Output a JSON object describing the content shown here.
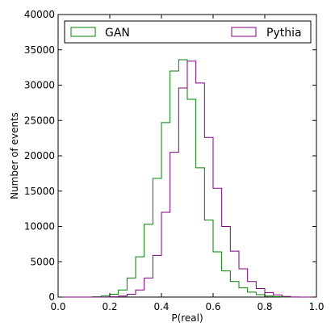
{
  "chart_data": {
    "type": "histogram",
    "title": "",
    "xlabel": "P(real)",
    "ylabel": "Number of events",
    "xlim": [
      0.0,
      1.0
    ],
    "ylim": [
      0,
      40000
    ],
    "xticks": [
      0.0,
      0.2,
      0.4,
      0.6,
      0.8,
      1.0
    ],
    "xtick_labels": [
      "0.0",
      "0.2",
      "0.4",
      "0.6",
      "0.8",
      "1.0"
    ],
    "yticks": [
      0,
      5000,
      10000,
      15000,
      20000,
      25000,
      30000,
      35000,
      40000
    ],
    "ytick_labels": [
      "0",
      "5000",
      "10000",
      "15000",
      "20000",
      "25000",
      "30000",
      "35000",
      "40000"
    ],
    "grid": false,
    "legend_placement": "top, two columns",
    "bin_edges": [
      0.0,
      0.0333,
      0.0667,
      0.1,
      0.1333,
      0.1667,
      0.2,
      0.2333,
      0.2667,
      0.3,
      0.3333,
      0.3667,
      0.4,
      0.4333,
      0.4667,
      0.5,
      0.5333,
      0.5667,
      0.6,
      0.6333,
      0.6667,
      0.7,
      0.7333,
      0.7667,
      0.8,
      0.8333,
      0.8667,
      0.9,
      0.9333,
      0.9667,
      1.0
    ],
    "series": [
      {
        "name": "GAN",
        "color": "#008000",
        "values": [
          0,
          0,
          0,
          0,
          50,
          150,
          400,
          1000,
          2700,
          5700,
          10300,
          16800,
          24700,
          32000,
          33600,
          28000,
          18300,
          10900,
          6400,
          3700,
          2200,
          1300,
          700,
          350,
          150,
          60,
          20,
          0,
          0,
          0
        ]
      },
      {
        "name": "Pythia",
        "color": "#800080",
        "values": [
          0,
          0,
          0,
          0,
          0,
          0,
          50,
          150,
          400,
          1000,
          2700,
          5900,
          12000,
          20500,
          29600,
          33400,
          30300,
          22600,
          15400,
          10000,
          6500,
          4000,
          2200,
          1200,
          650,
          300,
          80,
          10,
          0,
          0
        ]
      }
    ]
  }
}
